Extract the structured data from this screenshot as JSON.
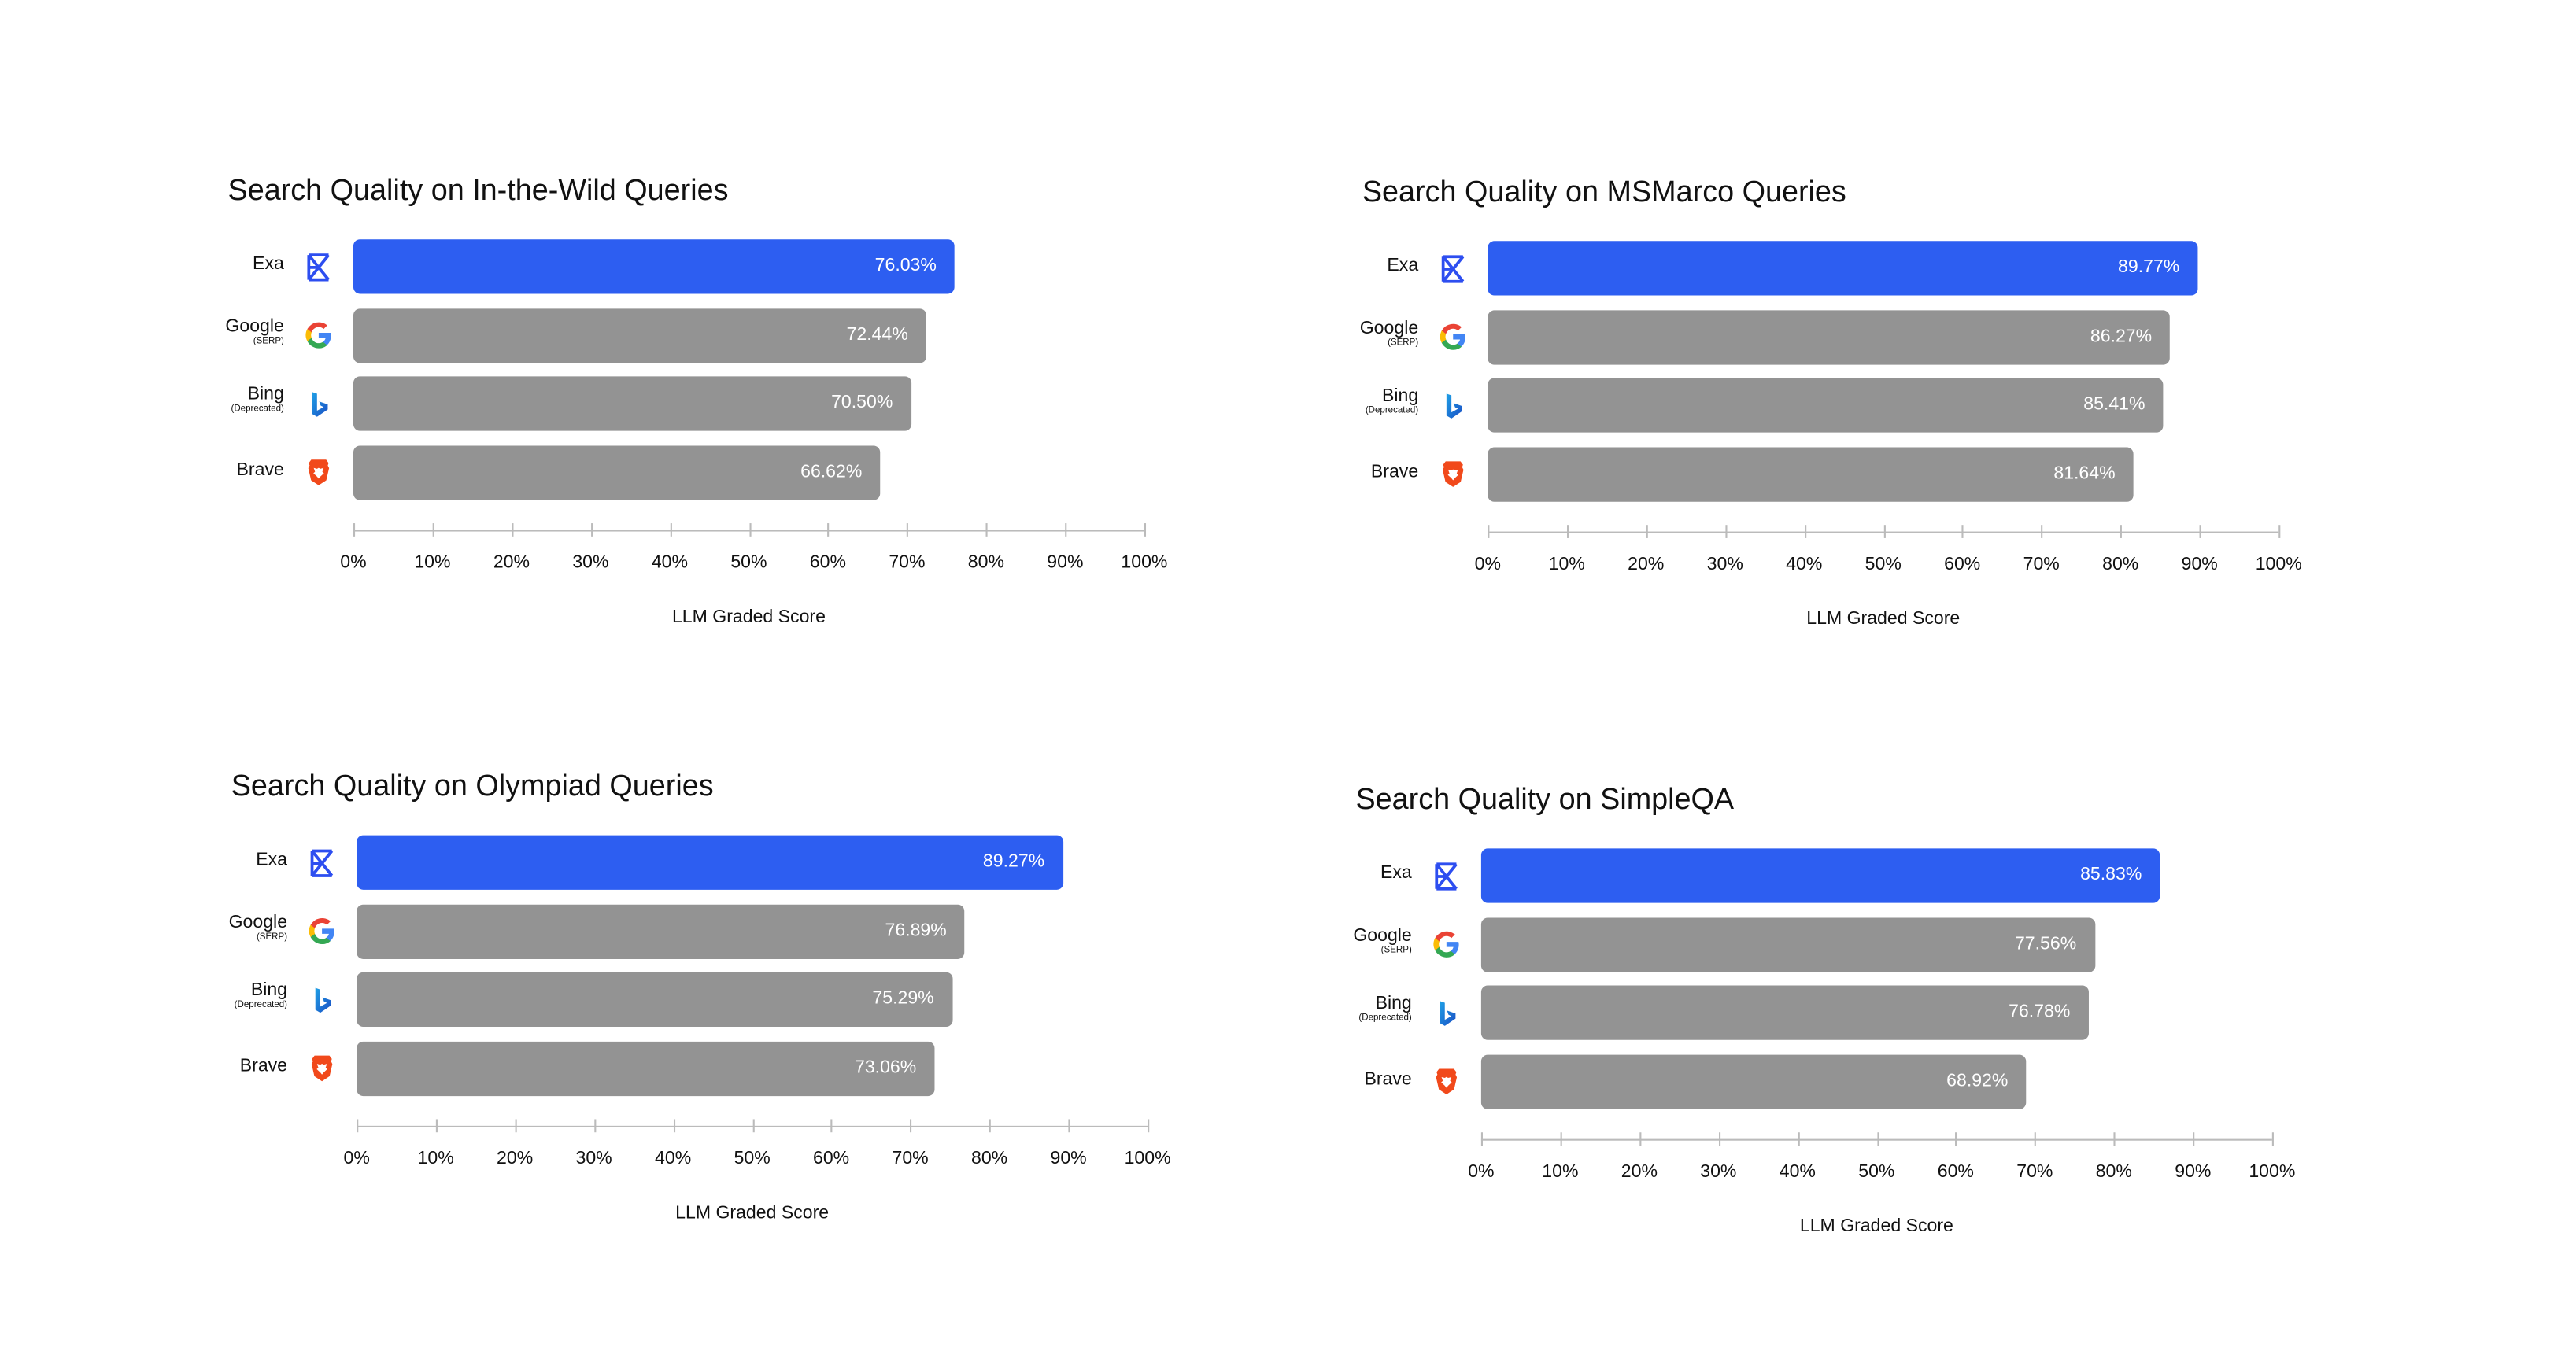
{
  "colors": {
    "exa": "#2d5ef1",
    "other": "#939393",
    "axis": "#bbbbbb"
  },
  "chart_data": [
    {
      "type": "bar",
      "title": "Search Quality on In-the-Wild Queries",
      "xlabel": "LLM Graded Score",
      "xlim": [
        0,
        100
      ],
      "ticks": [
        "0%",
        "10%",
        "20%",
        "30%",
        "40%",
        "50%",
        "60%",
        "70%",
        "80%",
        "90%",
        "100%"
      ],
      "categories": [
        {
          "name": "Exa",
          "sub": "",
          "icon": "exa-logo-icon",
          "value": 76.03,
          "label": "76.03%"
        },
        {
          "name": "Google",
          "sub": "(SERP)",
          "icon": "google-logo-icon",
          "value": 72.44,
          "label": "72.44%"
        },
        {
          "name": "Bing",
          "sub": "(Deprecated)",
          "icon": "bing-logo-icon",
          "value": 70.5,
          "label": "70.50%"
        },
        {
          "name": "Brave",
          "sub": "",
          "icon": "brave-logo-icon",
          "value": 66.62,
          "label": "66.62%"
        }
      ]
    },
    {
      "type": "bar",
      "title": "Search Quality on MSMarco Queries",
      "xlabel": "LLM Graded Score",
      "xlim": [
        0,
        100
      ],
      "ticks": [
        "0%",
        "10%",
        "20%",
        "30%",
        "40%",
        "50%",
        "60%",
        "70%",
        "80%",
        "90%",
        "100%"
      ],
      "categories": [
        {
          "name": "Exa",
          "sub": "",
          "icon": "exa-logo-icon",
          "value": 89.77,
          "label": "89.77%"
        },
        {
          "name": "Google",
          "sub": "(SERP)",
          "icon": "google-logo-icon",
          "value": 86.27,
          "label": "86.27%"
        },
        {
          "name": "Bing",
          "sub": "(Deprecated)",
          "icon": "bing-logo-icon",
          "value": 85.41,
          "label": "85.41%"
        },
        {
          "name": "Brave",
          "sub": "",
          "icon": "brave-logo-icon",
          "value": 81.64,
          "label": "81.64%"
        }
      ]
    },
    {
      "type": "bar",
      "title": "Search Quality on Olympiad Queries",
      "xlabel": "LLM Graded Score",
      "xlim": [
        0,
        100
      ],
      "ticks": [
        "0%",
        "10%",
        "20%",
        "30%",
        "40%",
        "50%",
        "60%",
        "70%",
        "80%",
        "90%",
        "100%"
      ],
      "categories": [
        {
          "name": "Exa",
          "sub": "",
          "icon": "exa-logo-icon",
          "value": 89.27,
          "label": "89.27%"
        },
        {
          "name": "Google",
          "sub": "(SERP)",
          "icon": "google-logo-icon",
          "value": 76.89,
          "label": "76.89%"
        },
        {
          "name": "Bing",
          "sub": "(Deprecated)",
          "icon": "bing-logo-icon",
          "value": 75.29,
          "label": "75.29%"
        },
        {
          "name": "Brave",
          "sub": "",
          "icon": "brave-logo-icon",
          "value": 73.06,
          "label": "73.06%"
        }
      ]
    },
    {
      "type": "bar",
      "title": "Search Quality on SimpleQA",
      "xlabel": "LLM Graded Score",
      "xlim": [
        0,
        100
      ],
      "ticks": [
        "0%",
        "10%",
        "20%",
        "30%",
        "40%",
        "50%",
        "60%",
        "70%",
        "80%",
        "90%",
        "100%"
      ],
      "categories": [
        {
          "name": "Exa",
          "sub": "",
          "icon": "exa-logo-icon",
          "value": 85.83,
          "label": "85.83%"
        },
        {
          "name": "Google",
          "sub": "(SERP)",
          "icon": "google-logo-icon",
          "value": 77.56,
          "label": "77.56%"
        },
        {
          "name": "Bing",
          "sub": "(Deprecated)",
          "icon": "bing-logo-icon",
          "value": 76.78,
          "label": "76.78%"
        },
        {
          "name": "Brave",
          "sub": "",
          "icon": "brave-logo-icon",
          "value": 68.92,
          "label": "68.92%"
        }
      ]
    }
  ]
}
